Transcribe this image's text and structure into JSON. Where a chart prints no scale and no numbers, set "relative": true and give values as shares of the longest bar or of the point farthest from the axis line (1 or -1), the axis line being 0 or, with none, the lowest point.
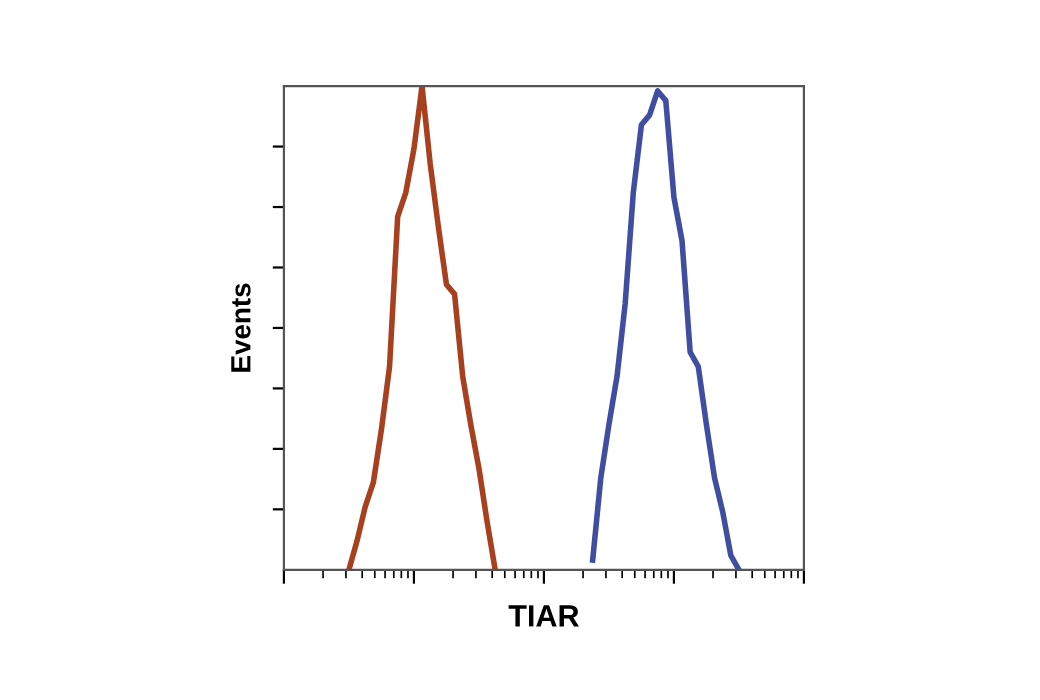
{
  "chart_data": {
    "type": "line",
    "relative": true,
    "xlabel": "TIAR",
    "ylabel": "Events",
    "tick_labels": false,
    "grid": false,
    "legend": false,
    "marker": "none",
    "line_style": "solid",
    "categories": [
      null,
      null,
      null,
      null,
      null,
      null,
      null,
      null,
      null,
      null,
      null,
      null,
      null,
      null,
      null,
      null,
      null,
      null,
      null,
      null,
      null,
      null,
      null,
      null,
      null,
      null,
      null,
      null,
      null,
      null,
      null,
      null,
      null,
      null,
      null,
      null,
      null,
      null,
      null,
      null,
      null,
      null,
      null,
      null,
      null,
      null,
      null,
      null,
      null,
      null,
      null,
      null,
      null,
      null,
      null,
      null,
      null,
      null,
      null,
      null,
      null,
      null,
      null,
      null,
      null
    ],
    "series": [
      {
        "color": "#a8401f",
        "values": [
          null,
          null,
          null,
          null,
          null,
          null,
          null,
          null,
          0,
          0.06,
          0.13,
          0.18,
          0.29,
          0.42,
          0.73,
          0.78,
          0.87,
          1.0,
          0.84,
          0.71,
          0.59,
          0.57,
          0.4,
          0.3,
          0.21,
          0.1,
          0,
          null,
          null,
          null,
          null,
          null,
          null,
          null,
          null,
          null,
          null,
          null,
          null,
          null,
          null,
          null,
          null,
          null,
          null,
          null,
          null,
          null,
          null,
          null,
          null,
          null,
          null,
          null,
          null,
          null,
          null,
          null,
          null,
          null,
          null,
          null,
          null,
          null,
          null
        ]
      },
      {
        "color": "#3f4ea0",
        "values": [
          null,
          null,
          null,
          null,
          null,
          null,
          null,
          null,
          null,
          null,
          null,
          null,
          null,
          null,
          null,
          null,
          null,
          null,
          null,
          null,
          null,
          null,
          null,
          null,
          null,
          null,
          null,
          null,
          null,
          null,
          null,
          null,
          null,
          null,
          null,
          null,
          null,
          null,
          0.02,
          0.19,
          0.3,
          0.4,
          0.55,
          0.78,
          0.92,
          0.94,
          0.99,
          0.97,
          0.77,
          0.68,
          0.45,
          0.42,
          0.3,
          0.19,
          0.12,
          0.03,
          0,
          null,
          null,
          null,
          null,
          null,
          null,
          null,
          null
        ]
      }
    ]
  }
}
